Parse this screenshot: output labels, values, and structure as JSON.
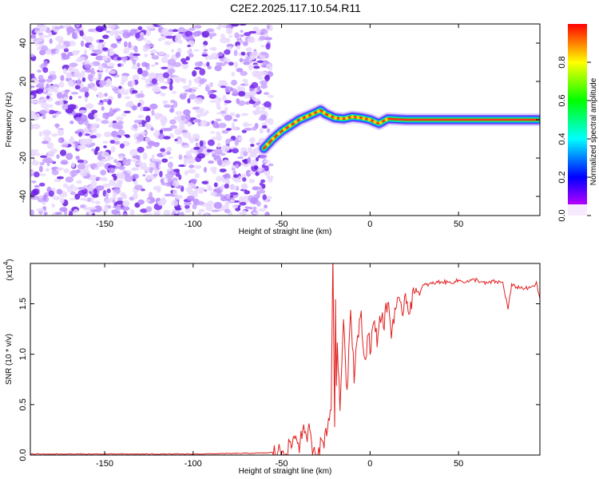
{
  "figure": {
    "title": "C2E2.2025.117.10.54.R11"
  },
  "chart_data": [
    {
      "type": "heatmap",
      "panel": "spectrogram",
      "xlabel": "Height of straight line (km)",
      "ylabel": "Frequency (Hz)",
      "xlim": [
        -192,
        96
      ],
      "ylim": [
        -50,
        50
      ],
      "x_ticks": [
        -150,
        -100,
        -50,
        0,
        50
      ],
      "y_ticks": [
        -40,
        -20,
        0,
        20,
        40
      ],
      "noise_region_x": [
        -192,
        -56
      ],
      "ridge": {
        "x": [
          -60,
          -55,
          -50,
          -45,
          -40,
          -35,
          -30,
          -28,
          -25,
          -20,
          -15,
          -10,
          -5,
          0,
          5,
          10,
          20,
          40,
          60,
          80,
          95
        ],
        "y": [
          -15,
          -10,
          -6,
          -3,
          0,
          2,
          4,
          5,
          3,
          1,
          0.5,
          1.5,
          1,
          0,
          -2,
          0.5,
          0,
          0,
          0,
          0,
          0
        ]
      },
      "colorbar": {
        "label": "Normalized spectral amplitude",
        "range": [
          0,
          1
        ],
        "ticks": [
          0.0,
          0.2,
          0.4,
          0.6,
          0.8
        ],
        "colors": [
          "#ff00ff",
          "#0000ff",
          "#00ffff",
          "#00ff00",
          "#ffff00",
          "#ff0000"
        ]
      },
      "grid": false
    },
    {
      "type": "line",
      "panel": "snr",
      "xlabel": "Height of straight line (km)",
      "ylabel": "SNR (10 * v/v)",
      "scale_label": "(x10",
      "scale_exp": "4",
      "scale_close": ")",
      "xlim": [
        -192,
        96
      ],
      "ylim": [
        0,
        1.9
      ],
      "x_ticks": [
        -150,
        -100,
        -50,
        0,
        50
      ],
      "y_ticks": [
        0.0,
        0.5,
        1.0,
        1.5
      ],
      "series": [
        {
          "color": "#e02020",
          "x": [
            -192,
            -150,
            -100,
            -60,
            -52,
            -48,
            -45,
            -42,
            -40,
            -38,
            -36,
            -35,
            -33,
            -30,
            -28,
            -26,
            -24,
            -22,
            -21,
            -20,
            -19.5,
            -19,
            -18.5,
            -17,
            -15,
            -13,
            -11,
            -9,
            -7,
            -5,
            -3,
            -1,
            0,
            2,
            4,
            6,
            8,
            10,
            12,
            14,
            16,
            18,
            20,
            22,
            24,
            26,
            28,
            30,
            35,
            40,
            45,
            50,
            55,
            60,
            65,
            70,
            75,
            78,
            80,
            85,
            90,
            94,
            96
          ],
          "y": [
            0.01,
            0.01,
            0.01,
            0.02,
            0.03,
            0.05,
            0.08,
            0.2,
            0.1,
            0.25,
            0.12,
            0.3,
            0.08,
            0.06,
            0.09,
            0.15,
            0.3,
            0.5,
            1.9,
            0.3,
            1.6,
            0.6,
            1.2,
            0.4,
            1.4,
            0.6,
            1.5,
            0.8,
            1.2,
            1.35,
            0.9,
            1.25,
            1.05,
            1.3,
            1.15,
            1.4,
            1.3,
            1.55,
            1.2,
            1.45,
            1.5,
            1.4,
            1.6,
            1.45,
            1.55,
            1.65,
            1.6,
            1.68,
            1.7,
            1.72,
            1.71,
            1.73,
            1.72,
            1.74,
            1.7,
            1.72,
            1.71,
            1.45,
            1.68,
            1.66,
            1.65,
            1.7,
            1.55
          ]
        }
      ],
      "grid": false
    }
  ]
}
